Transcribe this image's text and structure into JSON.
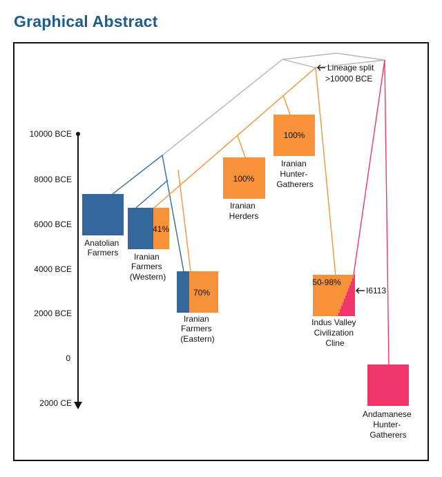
{
  "title": "Graphical Abstract",
  "colors": {
    "blue": "#34689c",
    "orange": "#f7923a",
    "pink": "#f0356a",
    "grey": "#b5b5b5",
    "title": "#1f5c8c"
  },
  "time_axis": {
    "ticks": [
      "10000 BCE",
      "8000 BCE",
      "6000 BCE",
      "4000 BCE",
      "2000 BCE",
      "0",
      "2000 CE"
    ]
  },
  "annotations": {
    "lineage_split_1": "Lineage split",
    "lineage_split_2": ">10000 BCE",
    "sample": "I6113"
  },
  "groups": {
    "anatolian": {
      "lines": [
        "Anatolian",
        "Farmers"
      ]
    },
    "iranian_western": {
      "lines": [
        "Iranian",
        "Farmers",
        "(Western)"
      ],
      "percent": "41%"
    },
    "iranian_eastern": {
      "lines": [
        "Iranian",
        "Farmers",
        "(Eastern)"
      ],
      "percent": "70%"
    },
    "iranian_herders": {
      "lines": [
        "Iranian",
        "Herders"
      ],
      "percent": "100%"
    },
    "iranian_hg": {
      "lines": [
        "Iranian",
        "Hunter-",
        "Gatherers"
      ],
      "percent": "100%"
    },
    "indus": {
      "lines": [
        "Indus Valley",
        "Civilization",
        "Cline"
      ],
      "percent": "50-98%"
    },
    "andamanese": {
      "lines": [
        "Andamanese",
        "Hunter-",
        "Gatherers"
      ]
    }
  }
}
